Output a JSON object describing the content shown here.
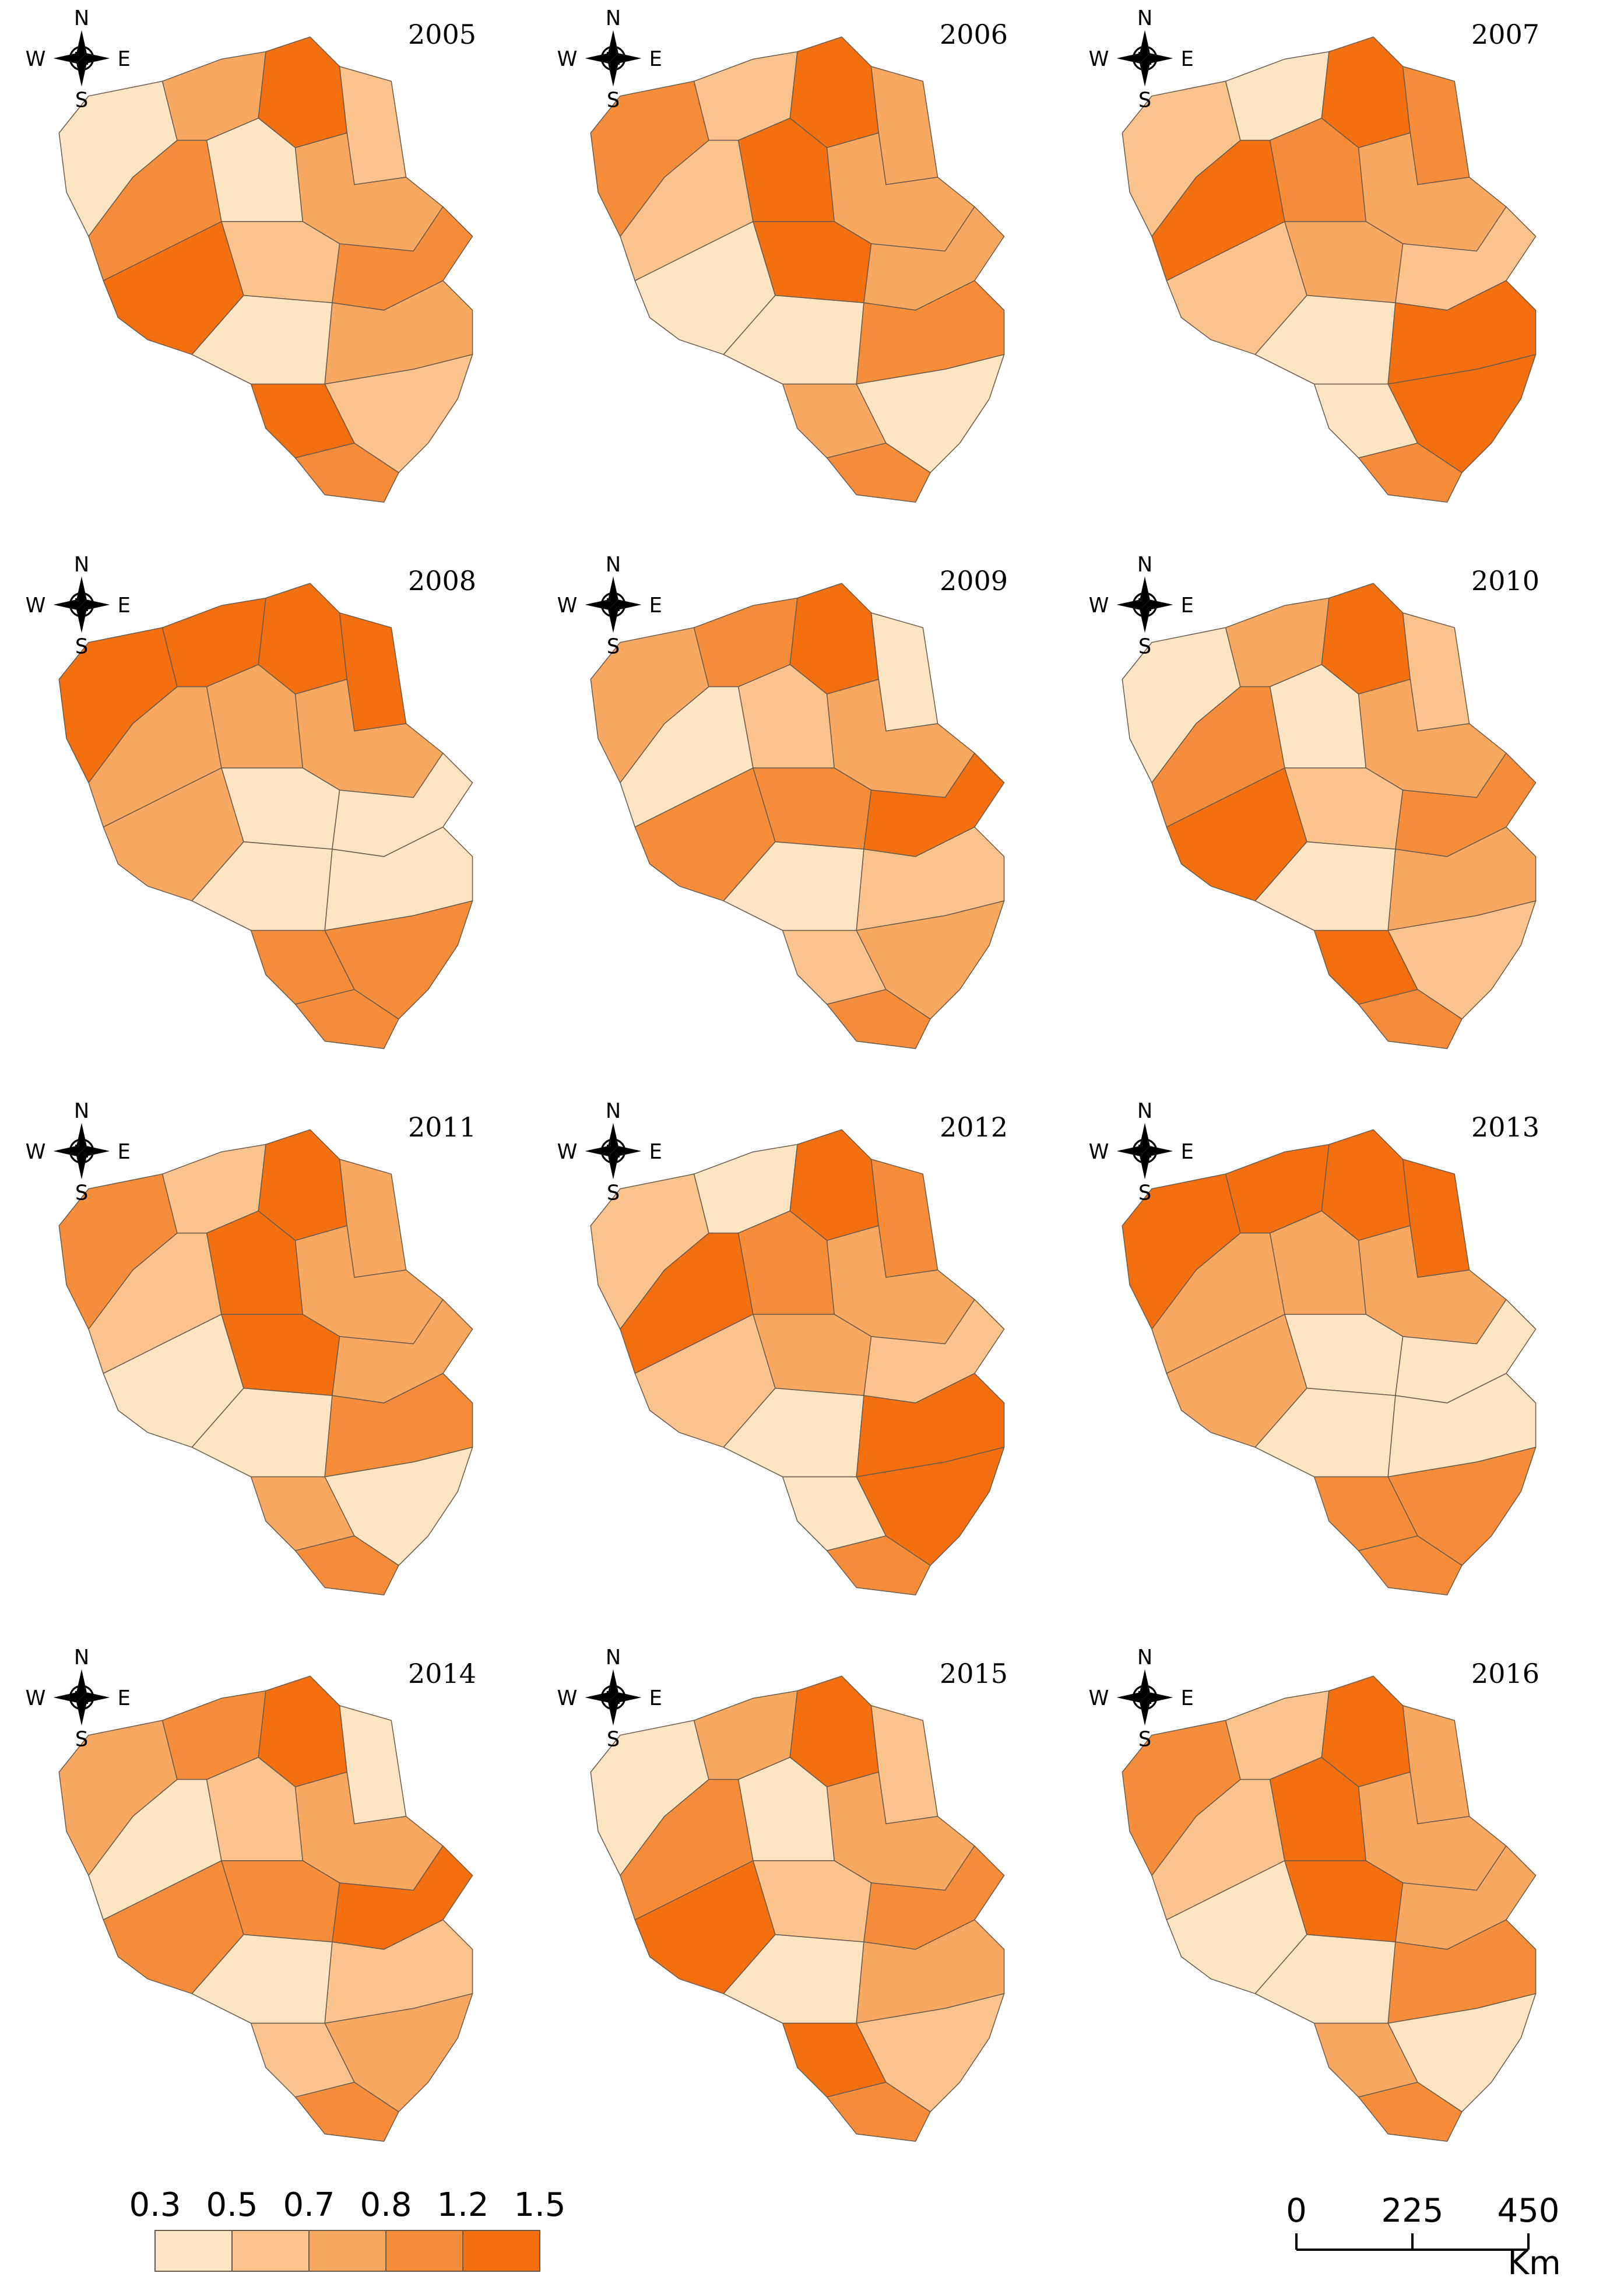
{
  "panels": [
    {
      "year": "2005"
    },
    {
      "year": "2006"
    },
    {
      "year": "2007"
    },
    {
      "year": "2008"
    },
    {
      "year": "2009"
    },
    {
      "year": "2010"
    },
    {
      "year": "2011"
    },
    {
      "year": "2012"
    },
    {
      "year": "2013"
    },
    {
      "year": "2014"
    },
    {
      "year": "2015"
    },
    {
      "year": "2016"
    }
  ],
  "compass": {
    "n": "N",
    "s": "S",
    "w": "W",
    "e": "E"
  },
  "legend": {
    "breaks": [
      0.3,
      0.5,
      0.7,
      0.8,
      1.2,
      1.5
    ],
    "colors": [
      "#fde5c4",
      "#fbc48c",
      "#f9a862",
      "#f58d3a",
      "#f36f10"
    ]
  },
  "scale_bar": {
    "ticks": [
      0,
      225,
      450
    ],
    "unit": "Km"
  }
}
